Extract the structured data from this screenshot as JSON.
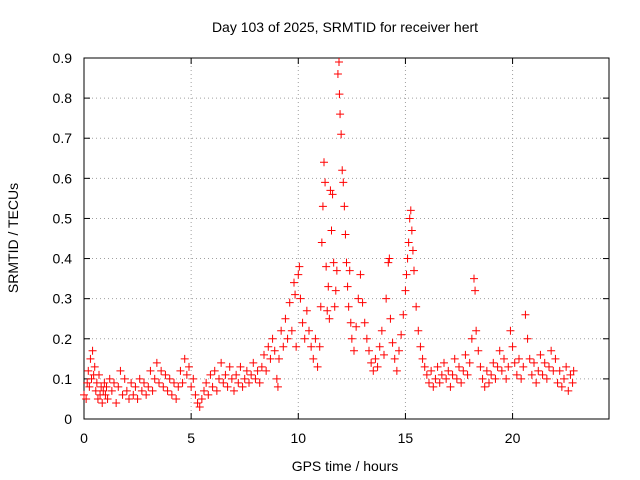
{
  "chart_data": {
    "type": "scatter",
    "title": "Day 103 of 2025, SRMTID for receiver hert",
    "xlabel": "GPS time / hours",
    "ylabel": "SRMTID / TECUs",
    "xlim": [
      0,
      24.5
    ],
    "ylim": [
      0,
      0.9
    ],
    "xticks": [
      0,
      5,
      10,
      15,
      20
    ],
    "yticks": [
      0,
      0.1,
      0.2,
      0.3,
      0.4,
      0.5,
      0.6,
      0.7,
      0.8,
      0.9
    ],
    "xtick_labels": [
      "0",
      "5",
      "10",
      "15",
      "20"
    ],
    "ytick_labels": [
      "0",
      "0.1",
      "0.2",
      "0.3",
      "0.4",
      "0.5",
      "0.6",
      "0.7",
      "0.8",
      "0.9"
    ],
    "grid": true,
    "marker": "+",
    "series": [
      {
        "name": "SRMTID",
        "color": "#ff0000",
        "points": [
          [
            0.0,
            0.06
          ],
          [
            0.1,
            0.05
          ],
          [
            0.15,
            0.09
          ],
          [
            0.2,
            0.12
          ],
          [
            0.25,
            0.08
          ],
          [
            0.3,
            0.15
          ],
          [
            0.35,
            0.1
          ],
          [
            0.4,
            0.17
          ],
          [
            0.45,
            0.11
          ],
          [
            0.5,
            0.13
          ],
          [
            0.55,
            0.07
          ],
          [
            0.6,
            0.09
          ],
          [
            0.65,
            0.05
          ],
          [
            0.7,
            0.11
          ],
          [
            0.75,
            0.06
          ],
          [
            0.8,
            0.08
          ],
          [
            0.85,
            0.04
          ],
          [
            0.9,
            0.07
          ],
          [
            0.95,
            0.09
          ],
          [
            1.0,
            0.06
          ],
          [
            1.05,
            0.08
          ],
          [
            1.1,
            0.05
          ],
          [
            1.2,
            0.1
          ],
          [
            1.3,
            0.07
          ],
          [
            1.4,
            0.09
          ],
          [
            1.5,
            0.04
          ],
          [
            1.6,
            0.08
          ],
          [
            1.7,
            0.12
          ],
          [
            1.8,
            0.06
          ],
          [
            1.9,
            0.1
          ],
          [
            2.0,
            0.07
          ],
          [
            2.1,
            0.05
          ],
          [
            2.2,
            0.09
          ],
          [
            2.3,
            0.06
          ],
          [
            2.4,
            0.08
          ],
          [
            2.5,
            0.05
          ],
          [
            2.6,
            0.1
          ],
          [
            2.7,
            0.07
          ],
          [
            2.8,
            0.09
          ],
          [
            2.9,
            0.06
          ],
          [
            3.0,
            0.08
          ],
          [
            3.1,
            0.12
          ],
          [
            3.2,
            0.07
          ],
          [
            3.3,
            0.1
          ],
          [
            3.4,
            0.14
          ],
          [
            3.5,
            0.09
          ],
          [
            3.6,
            0.12
          ],
          [
            3.7,
            0.08
          ],
          [
            3.8,
            0.11
          ],
          [
            3.9,
            0.07
          ],
          [
            4.0,
            0.1
          ],
          [
            4.1,
            0.06
          ],
          [
            4.2,
            0.09
          ],
          [
            4.3,
            0.05
          ],
          [
            4.4,
            0.08
          ],
          [
            4.5,
            0.12
          ],
          [
            4.6,
            0.09
          ],
          [
            4.7,
            0.15
          ],
          [
            4.8,
            0.11
          ],
          [
            4.9,
            0.13
          ],
          [
            5.0,
            0.08
          ],
          [
            5.1,
            0.1
          ],
          [
            5.2,
            0.06
          ],
          [
            5.3,
            0.04
          ],
          [
            5.4,
            0.03
          ],
          [
            5.5,
            0.05
          ],
          [
            5.6,
            0.07
          ],
          [
            5.7,
            0.09
          ],
          [
            5.8,
            0.06
          ],
          [
            5.9,
            0.11
          ],
          [
            6.0,
            0.08
          ],
          [
            6.1,
            0.12
          ],
          [
            6.2,
            0.07
          ],
          [
            6.3,
            0.1
          ],
          [
            6.4,
            0.14
          ],
          [
            6.5,
            0.09
          ],
          [
            6.6,
            0.11
          ],
          [
            6.7,
            0.08
          ],
          [
            6.8,
            0.13
          ],
          [
            6.9,
            0.1
          ],
          [
            7.0,
            0.07
          ],
          [
            7.1,
            0.11
          ],
          [
            7.2,
            0.09
          ],
          [
            7.3,
            0.13
          ],
          [
            7.4,
            0.08
          ],
          [
            7.5,
            0.1
          ],
          [
            7.6,
            0.12
          ],
          [
            7.7,
            0.09
          ],
          [
            7.8,
            0.11
          ],
          [
            7.9,
            0.14
          ],
          [
            8.0,
            0.1
          ],
          [
            8.1,
            0.12
          ],
          [
            8.2,
            0.09
          ],
          [
            8.3,
            0.13
          ],
          [
            8.4,
            0.16
          ],
          [
            8.5,
            0.12
          ],
          [
            8.6,
            0.18
          ],
          [
            8.7,
            0.15
          ],
          [
            8.8,
            0.2
          ],
          [
            8.9,
            0.17
          ],
          [
            9.0,
            0.1
          ],
          [
            9.05,
            0.08
          ],
          [
            9.1,
            0.15
          ],
          [
            9.2,
            0.22
          ],
          [
            9.3,
            0.18
          ],
          [
            9.4,
            0.25
          ],
          [
            9.5,
            0.2
          ],
          [
            9.6,
            0.29
          ],
          [
            9.7,
            0.22
          ],
          [
            9.8,
            0.34
          ],
          [
            9.85,
            0.31
          ],
          [
            9.9,
            0.18
          ],
          [
            10.0,
            0.36
          ],
          [
            10.05,
            0.38
          ],
          [
            10.1,
            0.3
          ],
          [
            10.2,
            0.24
          ],
          [
            10.3,
            0.2
          ],
          [
            10.4,
            0.27
          ],
          [
            10.5,
            0.22
          ],
          [
            10.6,
            0.18
          ],
          [
            10.7,
            0.15
          ],
          [
            10.8,
            0.2
          ],
          [
            10.9,
            0.13
          ],
          [
            11.0,
            0.18
          ],
          [
            11.05,
            0.28
          ],
          [
            11.1,
            0.44
          ],
          [
            11.15,
            0.53
          ],
          [
            11.2,
            0.64
          ],
          [
            11.25,
            0.59
          ],
          [
            11.3,
            0.38
          ],
          [
            11.35,
            0.27
          ],
          [
            11.4,
            0.33
          ],
          [
            11.45,
            0.25
          ],
          [
            11.5,
            0.57
          ],
          [
            11.55,
            0.47
          ],
          [
            11.6,
            0.56
          ],
          [
            11.65,
            0.39
          ],
          [
            11.7,
            0.28
          ],
          [
            11.75,
            0.32
          ],
          [
            11.8,
            0.37
          ],
          [
            11.85,
            0.86
          ],
          [
            11.9,
            0.89
          ],
          [
            11.92,
            0.81
          ],
          [
            11.95,
            0.76
          ],
          [
            12.0,
            0.71
          ],
          [
            12.05,
            0.62
          ],
          [
            12.1,
            0.59
          ],
          [
            12.15,
            0.53
          ],
          [
            12.2,
            0.46
          ],
          [
            12.25,
            0.39
          ],
          [
            12.3,
            0.33
          ],
          [
            12.35,
            0.28
          ],
          [
            12.4,
            0.37
          ],
          [
            12.45,
            0.24
          ],
          [
            12.5,
            0.2
          ],
          [
            12.6,
            0.17
          ],
          [
            12.7,
            0.23
          ],
          [
            12.8,
            0.3
          ],
          [
            12.9,
            0.36
          ],
          [
            13.0,
            0.29
          ],
          [
            13.1,
            0.24
          ],
          [
            13.2,
            0.2
          ],
          [
            13.3,
            0.17
          ],
          [
            13.4,
            0.14
          ],
          [
            13.5,
            0.12
          ],
          [
            13.6,
            0.15
          ],
          [
            13.7,
            0.13
          ],
          [
            13.8,
            0.18
          ],
          [
            13.9,
            0.22
          ],
          [
            14.0,
            0.16
          ],
          [
            14.1,
            0.3
          ],
          [
            14.2,
            0.39
          ],
          [
            14.25,
            0.4
          ],
          [
            14.3,
            0.25
          ],
          [
            14.4,
            0.19
          ],
          [
            14.5,
            0.15
          ],
          [
            14.6,
            0.12
          ],
          [
            14.7,
            0.17
          ],
          [
            14.8,
            0.21
          ],
          [
            14.9,
            0.26
          ],
          [
            15.0,
            0.32
          ],
          [
            15.05,
            0.36
          ],
          [
            15.1,
            0.4
          ],
          [
            15.15,
            0.44
          ],
          [
            15.2,
            0.5
          ],
          [
            15.25,
            0.52
          ],
          [
            15.3,
            0.47
          ],
          [
            15.35,
            0.42
          ],
          [
            15.4,
            0.37
          ],
          [
            15.5,
            0.28
          ],
          [
            15.6,
            0.22
          ],
          [
            15.7,
            0.18
          ],
          [
            15.8,
            0.15
          ],
          [
            15.9,
            0.13
          ],
          [
            16.0,
            0.11
          ],
          [
            16.1,
            0.09
          ],
          [
            16.2,
            0.12
          ],
          [
            16.3,
            0.08
          ],
          [
            16.4,
            0.1
          ],
          [
            16.5,
            0.13
          ],
          [
            16.6,
            0.09
          ],
          [
            16.7,
            0.11
          ],
          [
            16.8,
            0.14
          ],
          [
            16.9,
            0.1
          ],
          [
            17.0,
            0.12
          ],
          [
            17.1,
            0.08
          ],
          [
            17.2,
            0.11
          ],
          [
            17.3,
            0.15
          ],
          [
            17.4,
            0.1
          ],
          [
            17.5,
            0.13
          ],
          [
            17.6,
            0.09
          ],
          [
            17.7,
            0.12
          ],
          [
            17.8,
            0.16
          ],
          [
            17.9,
            0.11
          ],
          [
            18.0,
            0.14
          ],
          [
            18.1,
            0.2
          ],
          [
            18.2,
            0.35
          ],
          [
            18.25,
            0.32
          ],
          [
            18.3,
            0.22
          ],
          [
            18.4,
            0.17
          ],
          [
            18.5,
            0.13
          ],
          [
            18.6,
            0.1
          ],
          [
            18.7,
            0.08
          ],
          [
            18.8,
            0.12
          ],
          [
            18.9,
            0.09
          ],
          [
            19.0,
            0.11
          ],
          [
            19.1,
            0.14
          ],
          [
            19.2,
            0.1
          ],
          [
            19.3,
            0.13
          ],
          [
            19.4,
            0.17
          ],
          [
            19.5,
            0.12
          ],
          [
            19.6,
            0.15
          ],
          [
            19.7,
            0.1
          ],
          [
            19.8,
            0.13
          ],
          [
            19.9,
            0.22
          ],
          [
            20.0,
            0.18
          ],
          [
            20.1,
            0.14
          ],
          [
            20.2,
            0.11
          ],
          [
            20.3,
            0.15
          ],
          [
            20.4,
            0.1
          ],
          [
            20.5,
            0.13
          ],
          [
            20.6,
            0.26
          ],
          [
            20.7,
            0.2
          ],
          [
            20.8,
            0.15
          ],
          [
            20.9,
            0.11
          ],
          [
            21.0,
            0.14
          ],
          [
            21.1,
            0.09
          ],
          [
            21.2,
            0.12
          ],
          [
            21.3,
            0.16
          ],
          [
            21.4,
            0.11
          ],
          [
            21.5,
            0.14
          ],
          [
            21.6,
            0.1
          ],
          [
            21.7,
            0.13
          ],
          [
            21.8,
            0.17
          ],
          [
            21.9,
            0.12
          ],
          [
            22.0,
            0.15
          ],
          [
            22.1,
            0.09
          ],
          [
            22.2,
            0.12
          ],
          [
            22.3,
            0.08
          ],
          [
            22.4,
            0.1
          ],
          [
            22.5,
            0.13
          ],
          [
            22.6,
            0.07
          ],
          [
            22.7,
            0.11
          ],
          [
            22.8,
            0.09
          ],
          [
            22.85,
            0.12
          ]
        ]
      }
    ]
  }
}
